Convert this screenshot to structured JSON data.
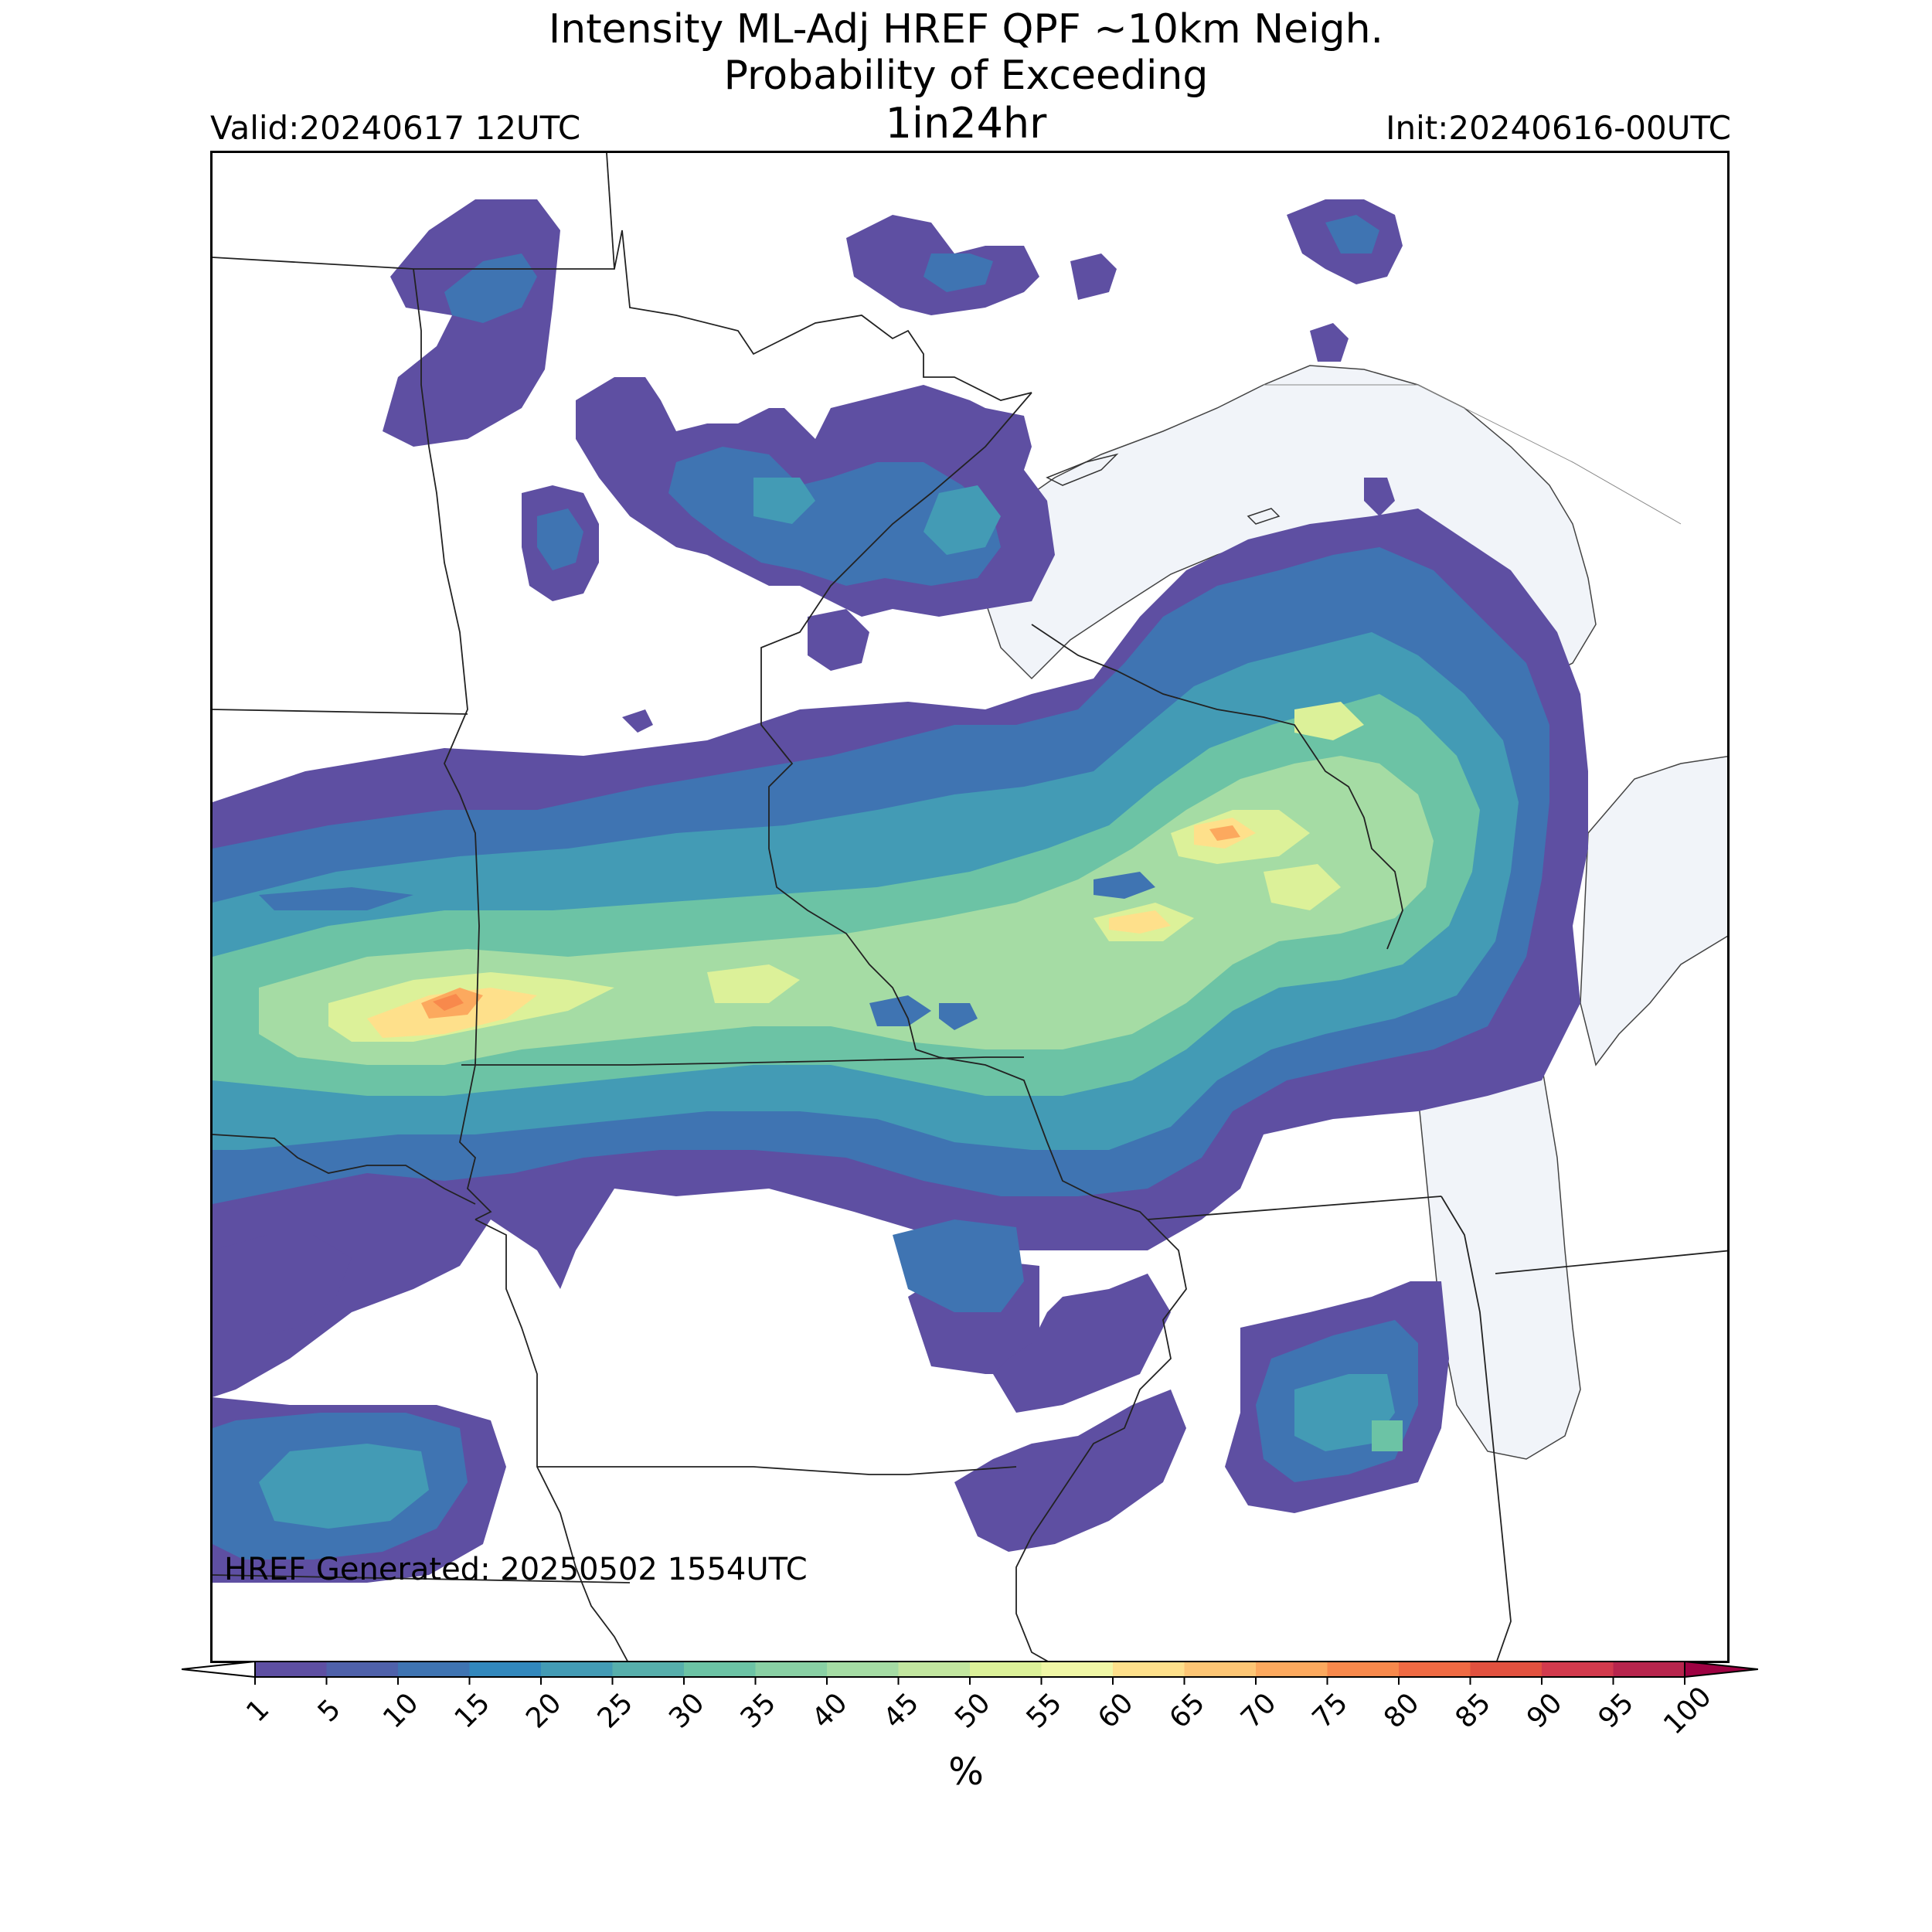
{
  "title": {
    "line1": "Intensity ML-Adj HREF QPF ~10km Neigh.",
    "line2": "Probability of Exceeding",
    "line3": "1in24hr"
  },
  "valid_label": "Valid:20240617 12UTC",
  "init_label": "Init:20240616-00UTC",
  "generated_label": "HREF Generated: 20250502 1554UTC",
  "colorbar": {
    "label": "%",
    "ticks": [
      "1",
      "5",
      "10",
      "15",
      "20",
      "25",
      "30",
      "35",
      "40",
      "45",
      "50",
      "55",
      "60",
      "65",
      "70",
      "75",
      "80",
      "85",
      "90",
      "95",
      "100"
    ],
    "colors": [
      "#5e4fa2",
      "#4f61aa",
      "#3f74b2",
      "#3288bd",
      "#439bb5",
      "#57afac",
      "#6cc3a5",
      "#89d0a4",
      "#a5dca4",
      "#c2e69f",
      "#dcf199",
      "#f0f7a6",
      "#fee08b",
      "#fdc675",
      "#fca95e",
      "#f8894c",
      "#ef6a43",
      "#e1513f",
      "#d23a4d",
      "#b7254d",
      "#9e0142"
    ],
    "extend": "both"
  },
  "map": {
    "region": "Upper Midwest / Great Lakes",
    "water_color": "#f1f4f9",
    "border_color": "#222222",
    "background_color": "#ffffff"
  }
}
